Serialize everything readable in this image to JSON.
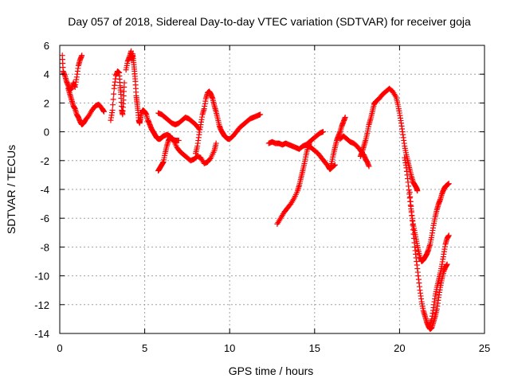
{
  "chart_data": {
    "type": "scatter",
    "title": "Day 057 of 2018, Sidereal Day-to-day VTEC variation (SDTVAR) for receiver goja",
    "xlabel": "GPS time / hours",
    "ylabel": "SDTVAR / TECUs",
    "xlim": [
      0,
      25
    ],
    "ylim": [
      -14,
      6
    ],
    "xticks": [
      0,
      5,
      10,
      15,
      20,
      25
    ],
    "yticks": [
      6,
      4,
      2,
      0,
      -2,
      -4,
      -6,
      -8,
      -10,
      -12,
      -14
    ],
    "grid": true,
    "marker": "+",
    "color": "#ff0000",
    "series": [
      {
        "points": [
          [
            0.15,
            5.3
          ],
          [
            0.2,
            4.2
          ],
          [
            0.3,
            3.9
          ],
          [
            0.4,
            3.5
          ],
          [
            0.5,
            3.2
          ],
          [
            0.6,
            2.9
          ],
          [
            0.7,
            3.0
          ],
          [
            0.8,
            3.4
          ],
          [
            0.9,
            3.1
          ],
          [
            1.0,
            3.8
          ],
          [
            1.1,
            4.6
          ],
          [
            1.2,
            5.0
          ],
          [
            1.3,
            5.3
          ]
        ]
      },
      {
        "points": [
          [
            0.5,
            3.0
          ],
          [
            0.6,
            2.6
          ],
          [
            0.7,
            2.2
          ],
          [
            0.8,
            1.8
          ],
          [
            0.9,
            1.6
          ],
          [
            1.0,
            1.2
          ],
          [
            1.1,
            1.0
          ],
          [
            1.2,
            0.7
          ],
          [
            1.3,
            0.5
          ],
          [
            1.4,
            0.6
          ],
          [
            1.5,
            0.8
          ],
          [
            1.7,
            1.1
          ],
          [
            1.9,
            1.5
          ],
          [
            2.1,
            1.8
          ],
          [
            2.3,
            1.9
          ],
          [
            2.5,
            1.6
          ],
          [
            2.6,
            1.4
          ]
        ]
      },
      {
        "points": [
          [
            3.0,
            0.8
          ],
          [
            3.1,
            1.5
          ],
          [
            3.2,
            3.0
          ],
          [
            3.3,
            3.9
          ],
          [
            3.4,
            4.2
          ],
          [
            3.5,
            4.1
          ],
          [
            3.55,
            3.2
          ],
          [
            3.6,
            2.6
          ],
          [
            3.65,
            1.5
          ],
          [
            3.7,
            1.2
          ],
          [
            3.75,
            2.2
          ],
          [
            3.8,
            3.4
          ]
        ]
      },
      {
        "points": [
          [
            3.9,
            4.3
          ],
          [
            4.0,
            4.9
          ],
          [
            4.1,
            5.2
          ],
          [
            4.2,
            5.6
          ],
          [
            4.25,
            5.0
          ],
          [
            4.3,
            5.4
          ],
          [
            4.35,
            4.8
          ],
          [
            4.4,
            4.2
          ],
          [
            4.45,
            3.5
          ],
          [
            4.5,
            2.5
          ],
          [
            4.55,
            2.0
          ],
          [
            4.6,
            1.5
          ],
          [
            4.65,
            0.8
          ],
          [
            4.7,
            0.6
          ],
          [
            4.75,
            0.9
          ],
          [
            4.8,
            1.3
          ],
          [
            4.9,
            1.5
          ],
          [
            5.0,
            1.4
          ],
          [
            5.1,
            1.2
          ],
          [
            5.2,
            0.7
          ]
        ]
      },
      {
        "points": [
          [
            5.2,
            0.8
          ],
          [
            5.3,
            0.5
          ],
          [
            5.4,
            0.2
          ],
          [
            5.5,
            0.0
          ],
          [
            5.6,
            -0.2
          ],
          [
            5.7,
            -0.4
          ],
          [
            5.8,
            -0.5
          ],
          [
            5.9,
            -0.5
          ],
          [
            6.0,
            -0.4
          ],
          [
            6.1,
            -0.3
          ],
          [
            6.3,
            -0.2
          ],
          [
            6.5,
            -0.3
          ],
          [
            6.7,
            -0.6
          ],
          [
            6.9,
            -1.1
          ],
          [
            7.1,
            -1.4
          ],
          [
            7.3,
            -1.6
          ],
          [
            7.5,
            -1.8
          ],
          [
            7.7,
            -2.0
          ],
          [
            7.9,
            -1.9
          ],
          [
            8.1,
            -1.7
          ],
          [
            8.3,
            -1.8
          ],
          [
            8.5,
            -2.2
          ],
          [
            8.7,
            -2.1
          ],
          [
            8.9,
            -1.8
          ],
          [
            9.1,
            -1.3
          ],
          [
            9.2,
            -0.8
          ]
        ]
      },
      {
        "points": [
          [
            5.8,
            -2.7
          ],
          [
            5.9,
            -2.5
          ],
          [
            6.0,
            -2.3
          ],
          [
            6.1,
            -2.1
          ],
          [
            6.2,
            -1.5
          ],
          [
            6.3,
            -1.0
          ],
          [
            6.4,
            -0.6
          ],
          [
            6.5,
            -0.4
          ],
          [
            6.6,
            -0.5
          ],
          [
            6.8,
            -0.6
          ],
          [
            7.0,
            -0.6
          ]
        ]
      },
      {
        "points": [
          [
            5.8,
            1.3
          ],
          [
            6.0,
            1.2
          ],
          [
            6.2,
            1.0
          ],
          [
            6.4,
            0.8
          ],
          [
            6.6,
            0.6
          ],
          [
            6.8,
            0.5
          ],
          [
            7.0,
            0.6
          ],
          [
            7.2,
            0.8
          ],
          [
            7.4,
            1.0
          ],
          [
            7.6,
            0.9
          ],
          [
            7.8,
            0.7
          ],
          [
            8.0,
            0.5
          ],
          [
            8.2,
            0.2
          ]
        ]
      },
      {
        "points": [
          [
            8.0,
            -1.5
          ],
          [
            8.1,
            -1.0
          ],
          [
            8.2,
            -0.2
          ],
          [
            8.3,
            0.5
          ],
          [
            8.4,
            1.2
          ],
          [
            8.5,
            1.6
          ],
          [
            8.6,
            2.3
          ],
          [
            8.7,
            2.7
          ],
          [
            8.8,
            2.8
          ],
          [
            8.9,
            2.6
          ],
          [
            9.0,
            2.3
          ],
          [
            9.1,
            1.8
          ],
          [
            9.2,
            1.4
          ],
          [
            9.3,
            0.9
          ],
          [
            9.4,
            0.4
          ],
          [
            9.5,
            0.1
          ],
          [
            9.6,
            -0.1
          ],
          [
            9.7,
            -0.3
          ],
          [
            9.8,
            -0.4
          ],
          [
            9.9,
            -0.5
          ],
          [
            10.0,
            -0.5
          ],
          [
            10.2,
            -0.3
          ],
          [
            10.4,
            0.0
          ],
          [
            10.6,
            0.3
          ],
          [
            10.8,
            0.5
          ],
          [
            11.0,
            0.7
          ],
          [
            11.2,
            0.9
          ],
          [
            11.4,
            1.0
          ],
          [
            11.6,
            1.1
          ],
          [
            11.8,
            1.2
          ]
        ]
      },
      {
        "points": [
          [
            12.3,
            -0.8
          ],
          [
            12.5,
            -0.7
          ],
          [
            12.7,
            -0.8
          ],
          [
            12.9,
            -0.8
          ],
          [
            13.1,
            -0.9
          ],
          [
            13.3,
            -0.8
          ],
          [
            13.5,
            -0.9
          ],
          [
            13.7,
            -1.0
          ],
          [
            13.9,
            -1.1
          ],
          [
            14.1,
            -1.2
          ],
          [
            14.3,
            -1.0
          ],
          [
            14.5,
            -0.9
          ],
          [
            14.7,
            -0.7
          ],
          [
            14.9,
            -0.5
          ],
          [
            15.1,
            -0.3
          ],
          [
            15.3,
            -0.1
          ],
          [
            15.5,
            0.0
          ]
        ]
      },
      {
        "points": [
          [
            12.8,
            -6.4
          ],
          [
            13.0,
            -6.0
          ],
          [
            13.2,
            -5.6
          ],
          [
            13.4,
            -5.3
          ],
          [
            13.6,
            -5.0
          ],
          [
            13.8,
            -4.6
          ],
          [
            14.0,
            -4.1
          ],
          [
            14.1,
            -3.7
          ],
          [
            14.2,
            -3.2
          ],
          [
            14.3,
            -2.7
          ],
          [
            14.4,
            -2.2
          ],
          [
            14.5,
            -1.6
          ],
          [
            14.6,
            -1.1
          ],
          [
            14.7,
            -0.8
          ]
        ]
      },
      {
        "points": [
          [
            14.6,
            -1.0
          ],
          [
            14.8,
            -1.1
          ],
          [
            15.0,
            -1.3
          ],
          [
            15.2,
            -1.5
          ],
          [
            15.4,
            -1.8
          ],
          [
            15.6,
            -2.1
          ],
          [
            15.8,
            -2.4
          ],
          [
            15.9,
            -2.6
          ],
          [
            16.0,
            -2.5
          ],
          [
            16.2,
            -2.3
          ]
        ]
      },
      {
        "points": [
          [
            15.9,
            -2.6
          ],
          [
            16.0,
            -2.2
          ],
          [
            16.1,
            -1.6
          ],
          [
            16.2,
            -1.1
          ],
          [
            16.3,
            -0.6
          ],
          [
            16.4,
            -0.3
          ],
          [
            16.5,
            0.0
          ],
          [
            16.6,
            0.4
          ],
          [
            16.7,
            0.7
          ],
          [
            16.8,
            1.0
          ]
        ]
      },
      {
        "points": [
          [
            16.5,
            -0.5
          ],
          [
            16.7,
            -0.3
          ],
          [
            16.9,
            -0.5
          ],
          [
            17.1,
            -0.7
          ],
          [
            17.3,
            -0.8
          ],
          [
            17.5,
            -1.0
          ],
          [
            17.7,
            -1.3
          ],
          [
            17.9,
            -1.6
          ],
          [
            18.0,
            -1.9
          ],
          [
            18.1,
            -2.1
          ],
          [
            18.2,
            -2.4
          ]
        ]
      },
      {
        "points": [
          [
            17.7,
            -1.7
          ],
          [
            17.8,
            -1.4
          ],
          [
            17.9,
            -1.0
          ],
          [
            18.0,
            -0.6
          ],
          [
            18.1,
            -0.1
          ],
          [
            18.2,
            0.5
          ],
          [
            18.3,
            0.9
          ],
          [
            18.4,
            1.4
          ],
          [
            18.5,
            1.9
          ],
          [
            18.6,
            2.1
          ],
          [
            18.8,
            2.3
          ],
          [
            19.0,
            2.6
          ],
          [
            19.2,
            2.8
          ],
          [
            19.4,
            3.0
          ],
          [
            19.6,
            2.8
          ],
          [
            19.8,
            2.4
          ],
          [
            19.9,
            1.9
          ],
          [
            20.0,
            1.3
          ],
          [
            20.1,
            0.6
          ],
          [
            20.2,
            -0.2
          ],
          [
            20.3,
            -1.0
          ],
          [
            20.4,
            -1.6
          ],
          [
            20.5,
            -2.1
          ],
          [
            20.6,
            -2.6
          ],
          [
            20.7,
            -3.1
          ],
          [
            20.8,
            -3.5
          ],
          [
            20.9,
            -3.7
          ],
          [
            21.0,
            -3.9
          ],
          [
            21.05,
            -4.1
          ]
        ]
      },
      {
        "points": [
          [
            20.3,
            -1.8
          ],
          [
            20.4,
            -2.5
          ],
          [
            20.5,
            -3.5
          ],
          [
            20.6,
            -4.6
          ],
          [
            20.7,
            -5.6
          ],
          [
            20.8,
            -6.4
          ],
          [
            20.9,
            -7.0
          ],
          [
            21.0,
            -7.6
          ],
          [
            21.1,
            -8.2
          ],
          [
            21.2,
            -8.7
          ],
          [
            21.3,
            -9.0
          ],
          [
            21.4,
            -8.9
          ],
          [
            21.5,
            -8.7
          ],
          [
            21.6,
            -8.5
          ],
          [
            21.7,
            -8.2
          ],
          [
            21.8,
            -7.8
          ],
          [
            21.9,
            -7.2
          ],
          [
            22.0,
            -6.5
          ],
          [
            22.1,
            -5.9
          ],
          [
            22.2,
            -5.4
          ],
          [
            22.3,
            -5.0
          ],
          [
            22.4,
            -4.7
          ],
          [
            22.5,
            -4.3
          ],
          [
            22.6,
            -4.0
          ],
          [
            22.7,
            -3.8
          ],
          [
            22.8,
            -3.7
          ],
          [
            22.9,
            -3.6
          ]
        ]
      },
      {
        "points": [
          [
            20.6,
            -4.2
          ],
          [
            20.7,
            -5.5
          ],
          [
            20.8,
            -6.8
          ],
          [
            20.9,
            -8.0
          ],
          [
            21.0,
            -9.0
          ],
          [
            21.1,
            -10.0
          ],
          [
            21.2,
            -11.0
          ],
          [
            21.3,
            -11.8
          ],
          [
            21.4,
            -12.4
          ],
          [
            21.5,
            -12.8
          ],
          [
            21.6,
            -13.2
          ],
          [
            21.7,
            -13.5
          ],
          [
            21.8,
            -13.7
          ],
          [
            21.9,
            -13.6
          ],
          [
            22.0,
            -13.2
          ],
          [
            22.1,
            -12.8
          ],
          [
            22.2,
            -12.3
          ],
          [
            22.3,
            -11.5
          ],
          [
            22.4,
            -10.8
          ],
          [
            22.5,
            -10.2
          ],
          [
            22.6,
            -9.7
          ],
          [
            22.7,
            -9.4
          ],
          [
            22.8,
            -9.2
          ]
        ]
      },
      {
        "points": [
          [
            21.8,
            -13.4
          ],
          [
            21.9,
            -13.0
          ],
          [
            22.0,
            -12.2
          ],
          [
            22.1,
            -11.4
          ],
          [
            22.2,
            -10.8
          ],
          [
            22.3,
            -10.3
          ],
          [
            22.4,
            -9.8
          ],
          [
            22.5,
            -9.2
          ],
          [
            22.6,
            -8.5
          ],
          [
            22.7,
            -7.8
          ],
          [
            22.8,
            -7.4
          ],
          [
            22.9,
            -7.2
          ]
        ]
      }
    ]
  }
}
